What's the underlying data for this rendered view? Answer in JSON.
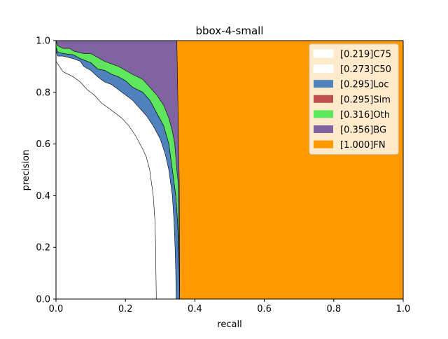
{
  "chart_data": {
    "type": "area",
    "title": "bbox-4-small",
    "xlabel": "recall",
    "ylabel": "precision",
    "xlim": [
      0,
      1
    ],
    "ylim": [
      0,
      1
    ],
    "xticks": [
      "0.0",
      "0.2",
      "0.4",
      "0.6",
      "0.8",
      "1.0"
    ],
    "yticks": [
      "0.0",
      "0.2",
      "0.4",
      "0.6",
      "0.8",
      "1.0"
    ],
    "grid": false,
    "legend_position": "top-right",
    "series": [
      {
        "name": "[1.000]FN",
        "color": "#ff9900",
        "points": [
          [
            0,
            1
          ],
          [
            1,
            1
          ],
          [
            1,
            0
          ],
          [
            0,
            0
          ]
        ]
      },
      {
        "name": "[0.356]BG",
        "color": "#8064a2",
        "points": [
          [
            0,
            1
          ],
          [
            0.01,
            1
          ],
          [
            0.05,
            1
          ],
          [
            0.1,
            1
          ],
          [
            0.15,
            1
          ],
          [
            0.2,
            1
          ],
          [
            0.25,
            1
          ],
          [
            0.3,
            1
          ],
          [
            0.33,
            1
          ],
          [
            0.348,
            1
          ],
          [
            0.352,
            0.7
          ],
          [
            0.355,
            0.45
          ],
          [
            0.356,
            0.2
          ],
          [
            0.356,
            0
          ]
        ]
      },
      {
        "name": "[0.316]Oth",
        "color": "#5ee65e",
        "points": [
          [
            0,
            1
          ],
          [
            0.005,
            0.98
          ],
          [
            0.02,
            0.97
          ],
          [
            0.04,
            0.97
          ],
          [
            0.05,
            0.96
          ],
          [
            0.08,
            0.95
          ],
          [
            0.1,
            0.95
          ],
          [
            0.12,
            0.935
          ],
          [
            0.14,
            0.92
          ],
          [
            0.16,
            0.91
          ],
          [
            0.18,
            0.9
          ],
          [
            0.2,
            0.885
          ],
          [
            0.22,
            0.87
          ],
          [
            0.25,
            0.85
          ],
          [
            0.27,
            0.82
          ],
          [
            0.29,
            0.79
          ],
          [
            0.31,
            0.75
          ],
          [
            0.325,
            0.7
          ],
          [
            0.335,
            0.65
          ],
          [
            0.342,
            0.6
          ],
          [
            0.348,
            0.5
          ],
          [
            0.352,
            0.45
          ],
          [
            0.356,
            0
          ]
        ]
      },
      {
        "name": "[0.295]Sim",
        "color": "#c0504d",
        "points": [
          [
            0,
            0.975
          ],
          [
            0.005,
            0.955
          ],
          [
            0.02,
            0.95
          ],
          [
            0.05,
            0.945
          ],
          [
            0.07,
            0.93
          ],
          [
            0.08,
            0.925
          ],
          [
            0.1,
            0.915
          ],
          [
            0.12,
            0.89
          ],
          [
            0.14,
            0.885
          ],
          [
            0.16,
            0.87
          ],
          [
            0.18,
            0.86
          ],
          [
            0.2,
            0.845
          ],
          [
            0.22,
            0.82
          ],
          [
            0.25,
            0.8
          ],
          [
            0.27,
            0.77
          ],
          [
            0.29,
            0.72
          ],
          [
            0.31,
            0.67
          ],
          [
            0.325,
            0.6
          ],
          [
            0.335,
            0.5
          ],
          [
            0.345,
            0.4
          ],
          [
            0.35,
            0.3
          ],
          [
            0.353,
            0.2
          ],
          [
            0.355,
            0.1
          ],
          [
            0.356,
            0
          ]
        ]
      },
      {
        "name": "[0.295]Loc",
        "color": "#4f81bd",
        "points": [
          [
            0,
            0.975
          ],
          [
            0.005,
            0.955
          ],
          [
            0.02,
            0.95
          ],
          [
            0.05,
            0.945
          ],
          [
            0.07,
            0.93
          ],
          [
            0.08,
            0.925
          ],
          [
            0.1,
            0.915
          ],
          [
            0.12,
            0.89
          ],
          [
            0.14,
            0.885
          ],
          [
            0.16,
            0.87
          ],
          [
            0.18,
            0.86
          ],
          [
            0.2,
            0.845
          ],
          [
            0.22,
            0.82
          ],
          [
            0.25,
            0.8
          ],
          [
            0.27,
            0.77
          ],
          [
            0.29,
            0.72
          ],
          [
            0.31,
            0.67
          ],
          [
            0.325,
            0.6
          ],
          [
            0.335,
            0.5
          ],
          [
            0.345,
            0.4
          ],
          [
            0.35,
            0.3
          ],
          [
            0.353,
            0.2
          ],
          [
            0.355,
            0.1
          ],
          [
            0.356,
            0
          ]
        ]
      },
      {
        "name": "[0.273]C50",
        "color": "#ffffff",
        "points": [
          [
            0,
            0.96
          ],
          [
            0.005,
            0.94
          ],
          [
            0.02,
            0.94
          ],
          [
            0.05,
            0.93
          ],
          [
            0.07,
            0.92
          ],
          [
            0.08,
            0.9
          ],
          [
            0.1,
            0.885
          ],
          [
            0.12,
            0.86
          ],
          [
            0.14,
            0.84
          ],
          [
            0.16,
            0.83
          ],
          [
            0.18,
            0.81
          ],
          [
            0.2,
            0.79
          ],
          [
            0.22,
            0.77
          ],
          [
            0.24,
            0.74
          ],
          [
            0.26,
            0.71
          ],
          [
            0.28,
            0.67
          ],
          [
            0.3,
            0.62
          ],
          [
            0.315,
            0.56
          ],
          [
            0.325,
            0.5
          ],
          [
            0.33,
            0.45
          ],
          [
            0.335,
            0.4
          ],
          [
            0.34,
            0.3
          ],
          [
            0.343,
            0.2
          ],
          [
            0.345,
            0.1
          ],
          [
            0.346,
            0
          ]
        ]
      },
      {
        "name": "[0.219]C75",
        "color": "#ffffff",
        "points": [
          [
            0,
            0.92
          ],
          [
            0.01,
            0.9
          ],
          [
            0.02,
            0.88
          ],
          [
            0.05,
            0.86
          ],
          [
            0.07,
            0.84
          ],
          [
            0.09,
            0.81
          ],
          [
            0.11,
            0.79
          ],
          [
            0.13,
            0.76
          ],
          [
            0.15,
            0.74
          ],
          [
            0.17,
            0.72
          ],
          [
            0.19,
            0.7
          ],
          [
            0.21,
            0.67
          ],
          [
            0.23,
            0.63
          ],
          [
            0.25,
            0.58
          ],
          [
            0.26,
            0.55
          ],
          [
            0.27,
            0.5
          ],
          [
            0.275,
            0.45
          ],
          [
            0.28,
            0.4
          ],
          [
            0.285,
            0.3
          ],
          [
            0.287,
            0.2
          ],
          [
            0.288,
            0.1
          ],
          [
            0.289,
            0
          ]
        ]
      }
    ]
  }
}
